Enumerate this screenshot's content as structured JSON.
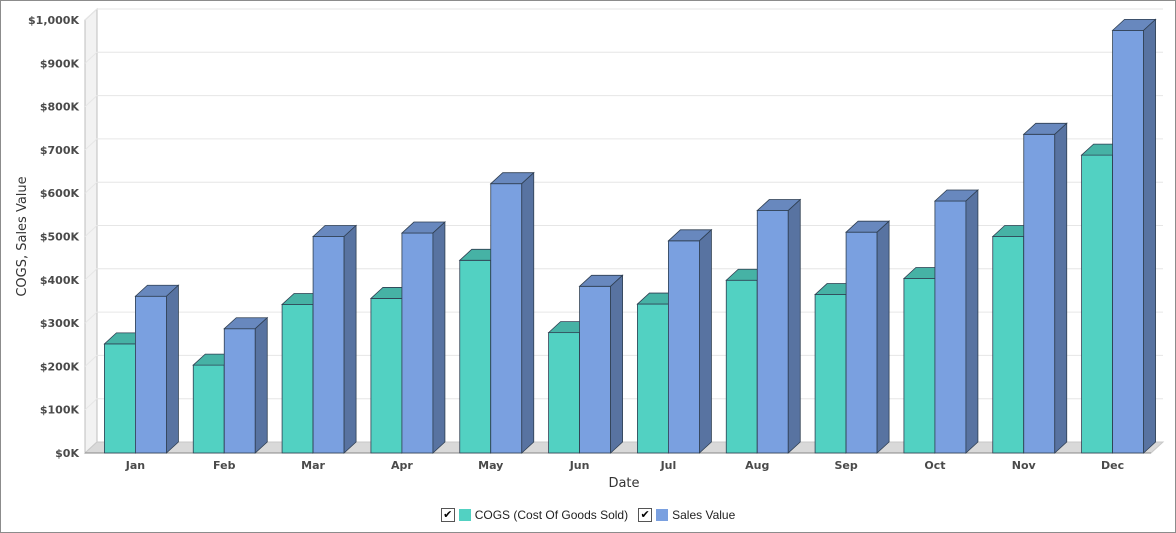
{
  "chart_data": {
    "type": "bar",
    "style": "3d-clustered",
    "categories": [
      "Jan",
      "Feb",
      "Mar",
      "Apr",
      "May",
      "Jun",
      "Jul",
      "Aug",
      "Sep",
      "Oct",
      "Nov",
      "Dec"
    ],
    "series": [
      {
        "name": "COGS (Cost Of Goods Sold)",
        "color": "#52d1c2",
        "values": [
          252000,
          203000,
          343000,
          357000,
          445000,
          278000,
          344000,
          399000,
          366000,
          403000,
          500000,
          688000
        ]
      },
      {
        "name": "Sales Value",
        "color": "#7aa0e0",
        "values": [
          362000,
          287000,
          500000,
          508000,
          622000,
          385000,
          490000,
          560000,
          510000,
          582000,
          736000,
          976000
        ]
      }
    ],
    "xlabel": "Date",
    "ylabel": "COGS, Sales Value",
    "ylim": [
      0,
      1000000
    ],
    "yticks": [
      0,
      100000,
      200000,
      300000,
      400000,
      500000,
      600000,
      700000,
      800000,
      900000,
      1000000
    ],
    "ytick_labels": [
      "$0K",
      "$100K",
      "$200K",
      "$300K",
      "$400K",
      "$500K",
      "$600K",
      "$700K",
      "$800K",
      "$900K",
      "$1,000K"
    ],
    "grid": true,
    "legend_position": "bottom"
  },
  "legend": {
    "items": [
      {
        "label": "COGS (Cost Of Goods Sold)",
        "checked": "✔"
      },
      {
        "label": "Sales Value",
        "checked": "✔"
      }
    ]
  }
}
